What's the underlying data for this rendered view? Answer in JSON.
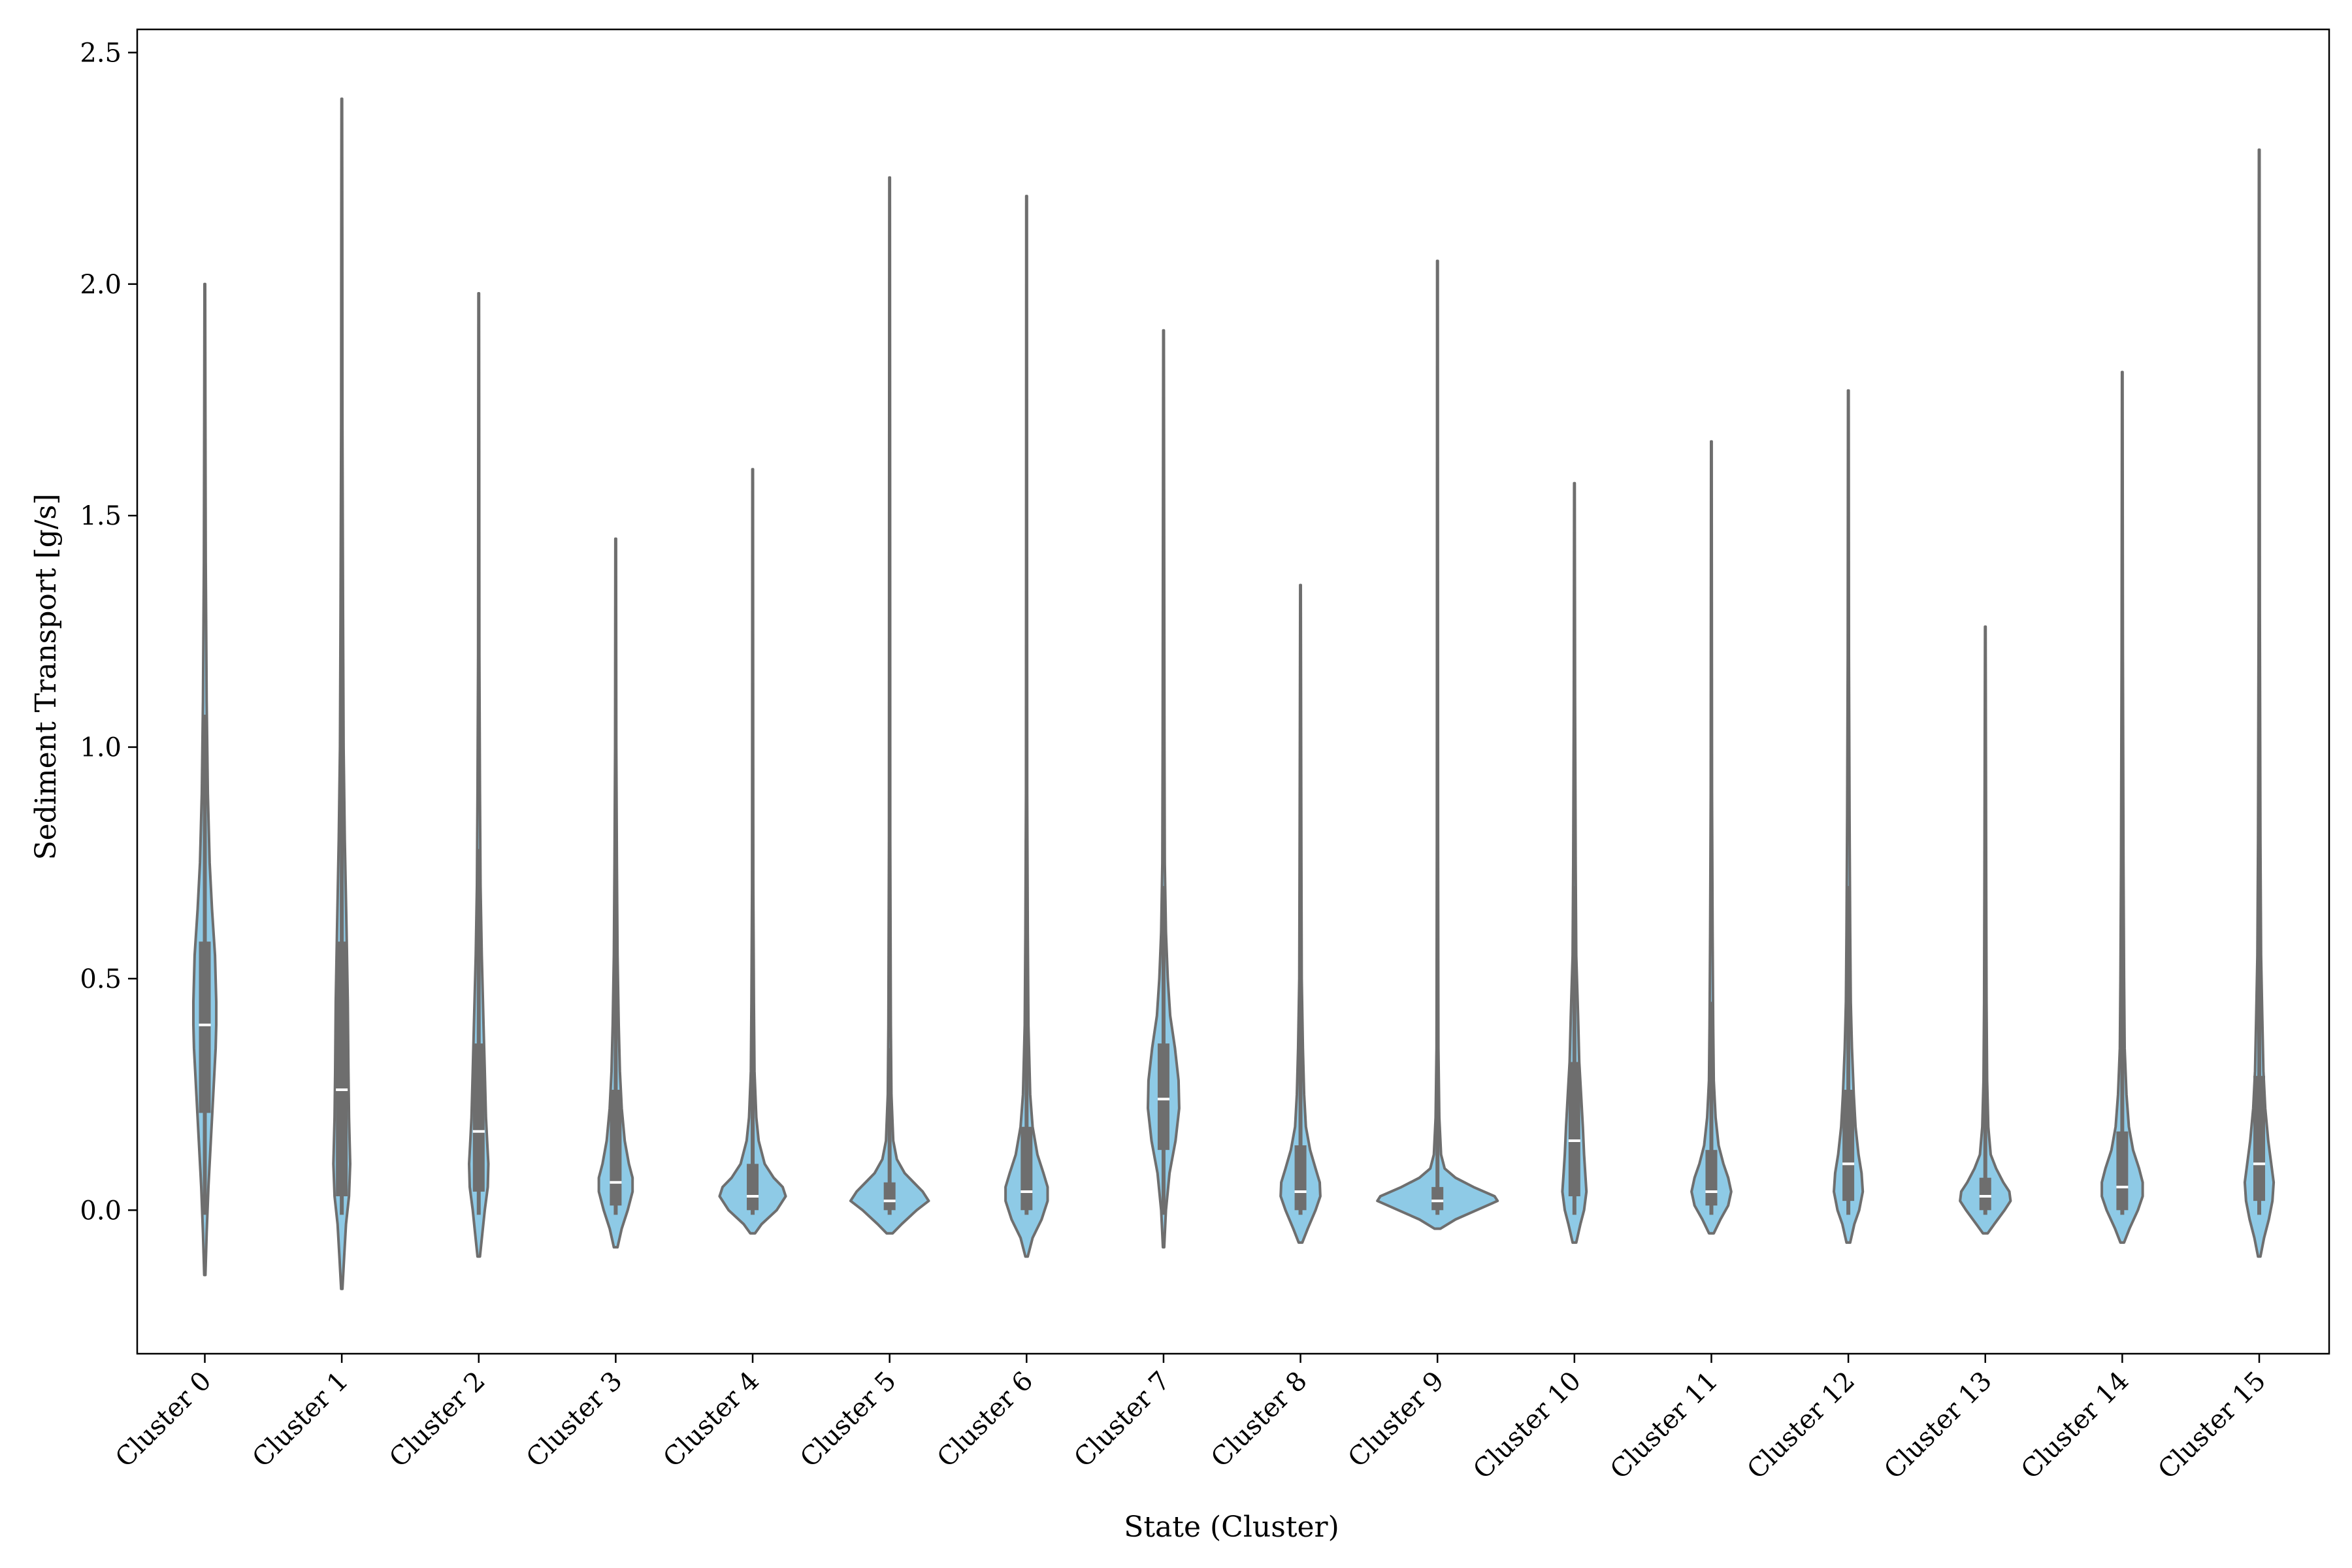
{
  "chart_data": {
    "type": "violin",
    "title": "",
    "xlabel": "State (Cluster)",
    "ylabel": "Sediment Transport [g/s]",
    "ylim": [
      -0.31,
      2.55
    ],
    "yticks": [
      0.0,
      0.5,
      1.0,
      1.5,
      2.0,
      2.5
    ],
    "ytick_labels": [
      "0.0",
      "0.5",
      "1.0",
      "1.5",
      "2.0",
      "2.5"
    ],
    "categories": [
      "Cluster 0",
      "Cluster 1",
      "Cluster 2",
      "Cluster 3",
      "Cluster 4",
      "Cluster 5",
      "Cluster 6",
      "Cluster 7",
      "Cluster 8",
      "Cluster 9",
      "Cluster 10",
      "Cluster 11",
      "Cluster 12",
      "Cluster 13",
      "Cluster 14",
      "Cluster 15"
    ],
    "grid": false,
    "legend": "none",
    "colors": {
      "fill": "#8ecae6",
      "outline": "#6e6e6e",
      "median": "#ffffff",
      "axis": "#000000"
    },
    "violins": [
      {
        "name": "Cluster 0",
        "min": -0.14,
        "max": 2.0,
        "q1": 0.21,
        "median": 0.4,
        "q3": 0.58,
        "whisker_low": -0.01,
        "whisker_high": 1.07,
        "profile": [
          [
            -0.14,
            0.001
          ],
          [
            -0.05,
            0.003
          ],
          [
            0.05,
            0.006
          ],
          [
            0.15,
            0.01
          ],
          [
            0.25,
            0.014
          ],
          [
            0.35,
            0.018
          ],
          [
            0.4,
            0.019
          ],
          [
            0.45,
            0.019
          ],
          [
            0.55,
            0.017
          ],
          [
            0.65,
            0.012
          ],
          [
            0.75,
            0.008
          ],
          [
            0.9,
            0.005
          ],
          [
            1.1,
            0.003
          ],
          [
            1.4,
            0.0015
          ],
          [
            1.7,
            0.001
          ],
          [
            2.0,
            0.0005
          ]
        ]
      },
      {
        "name": "Cluster 1",
        "min": -0.17,
        "max": 2.4,
        "q1": 0.03,
        "median": 0.26,
        "q3": 0.58,
        "whisker_low": -0.01,
        "whisker_high": 1.33,
        "profile": [
          [
            -0.17,
            0.001
          ],
          [
            -0.1,
            0.004
          ],
          [
            -0.03,
            0.007
          ],
          [
            0.03,
            0.012
          ],
          [
            0.1,
            0.014
          ],
          [
            0.2,
            0.012
          ],
          [
            0.3,
            0.011
          ],
          [
            0.45,
            0.01
          ],
          [
            0.6,
            0.008
          ],
          [
            0.8,
            0.005
          ],
          [
            1.0,
            0.003
          ],
          [
            1.3,
            0.002
          ],
          [
            1.7,
            0.001
          ],
          [
            2.1,
            0.0008
          ],
          [
            2.4,
            0.0005
          ]
        ]
      },
      {
        "name": "Cluster 2",
        "min": -0.1,
        "max": 1.98,
        "q1": 0.04,
        "median": 0.17,
        "q3": 0.36,
        "whisker_low": -0.01,
        "whisker_high": 0.78,
        "profile": [
          [
            -0.1,
            0.002
          ],
          [
            -0.05,
            0.006
          ],
          [
            0.0,
            0.01
          ],
          [
            0.05,
            0.015
          ],
          [
            0.1,
            0.016
          ],
          [
            0.15,
            0.014
          ],
          [
            0.2,
            0.012
          ],
          [
            0.3,
            0.01
          ],
          [
            0.4,
            0.008
          ],
          [
            0.55,
            0.005
          ],
          [
            0.7,
            0.003
          ],
          [
            0.9,
            0.002
          ],
          [
            1.2,
            0.001
          ],
          [
            1.6,
            0.0008
          ],
          [
            1.98,
            0.0005
          ]
        ]
      },
      {
        "name": "Cluster 3",
        "min": -0.08,
        "max": 1.45,
        "q1": 0.01,
        "median": 0.06,
        "q3": 0.26,
        "whisker_low": -0.01,
        "whisker_high": 0.8,
        "profile": [
          [
            -0.08,
            0.003
          ],
          [
            -0.04,
            0.01
          ],
          [
            0.0,
            0.02
          ],
          [
            0.04,
            0.028
          ],
          [
            0.07,
            0.028
          ],
          [
            0.1,
            0.022
          ],
          [
            0.15,
            0.015
          ],
          [
            0.22,
            0.01
          ],
          [
            0.3,
            0.007
          ],
          [
            0.4,
            0.005
          ],
          [
            0.55,
            0.003
          ],
          [
            0.75,
            0.002
          ],
          [
            1.0,
            0.001
          ],
          [
            1.45,
            0.0005
          ]
        ]
      },
      {
        "name": "Cluster 4",
        "min": -0.05,
        "max": 1.6,
        "q1": 0.0,
        "median": 0.03,
        "q3": 0.1,
        "whisker_low": -0.01,
        "whisker_high": 0.45,
        "profile": [
          [
            -0.05,
            0.004
          ],
          [
            -0.03,
            0.015
          ],
          [
            0.0,
            0.04
          ],
          [
            0.03,
            0.055
          ],
          [
            0.05,
            0.05
          ],
          [
            0.07,
            0.035
          ],
          [
            0.1,
            0.02
          ],
          [
            0.15,
            0.01
          ],
          [
            0.2,
            0.006
          ],
          [
            0.3,
            0.003
          ],
          [
            0.45,
            0.002
          ],
          [
            0.7,
            0.001
          ],
          [
            1.0,
            0.0008
          ],
          [
            1.6,
            0.0005
          ]
        ]
      },
      {
        "name": "Cluster 5",
        "min": -0.05,
        "max": 2.23,
        "q1": 0.0,
        "median": 0.02,
        "q3": 0.06,
        "whisker_low": -0.01,
        "whisker_high": 0.35,
        "profile": [
          [
            -0.05,
            0.005
          ],
          [
            -0.03,
            0.02
          ],
          [
            0.0,
            0.045
          ],
          [
            0.02,
            0.065
          ],
          [
            0.04,
            0.055
          ],
          [
            0.06,
            0.04
          ],
          [
            0.08,
            0.025
          ],
          [
            0.11,
            0.012
          ],
          [
            0.15,
            0.006
          ],
          [
            0.25,
            0.003
          ],
          [
            0.4,
            0.002
          ],
          [
            0.8,
            0.001
          ],
          [
            1.5,
            0.0008
          ],
          [
            2.23,
            0.0005
          ]
        ]
      },
      {
        "name": "Cluster 6",
        "min": -0.1,
        "max": 2.19,
        "q1": 0.0,
        "median": 0.04,
        "q3": 0.18,
        "whisker_low": -0.01,
        "whisker_high": 0.8,
        "profile": [
          [
            -0.1,
            0.002
          ],
          [
            -0.06,
            0.01
          ],
          [
            -0.02,
            0.025
          ],
          [
            0.02,
            0.035
          ],
          [
            0.05,
            0.035
          ],
          [
            0.08,
            0.028
          ],
          [
            0.12,
            0.018
          ],
          [
            0.18,
            0.01
          ],
          [
            0.25,
            0.006
          ],
          [
            0.4,
            0.003
          ],
          [
            0.6,
            0.002
          ],
          [
            0.9,
            0.001
          ],
          [
            1.4,
            0.0008
          ],
          [
            2.19,
            0.0005
          ]
        ]
      },
      {
        "name": "Cluster 7",
        "min": -0.08,
        "max": 1.9,
        "q1": 0.13,
        "median": 0.24,
        "q3": 0.36,
        "whisker_low": -0.01,
        "whisker_high": 0.7,
        "profile": [
          [
            -0.08,
            0.001
          ],
          [
            0.0,
            0.004
          ],
          [
            0.08,
            0.01
          ],
          [
            0.15,
            0.02
          ],
          [
            0.22,
            0.026
          ],
          [
            0.28,
            0.025
          ],
          [
            0.35,
            0.019
          ],
          [
            0.42,
            0.011
          ],
          [
            0.5,
            0.007
          ],
          [
            0.6,
            0.004
          ],
          [
            0.75,
            0.002
          ],
          [
            1.0,
            0.0015
          ],
          [
            1.4,
            0.001
          ],
          [
            1.9,
            0.0005
          ]
        ]
      },
      {
        "name": "Cluster 8",
        "min": -0.07,
        "max": 1.35,
        "q1": 0.0,
        "median": 0.04,
        "q3": 0.14,
        "whisker_low": -0.01,
        "whisker_high": 0.5,
        "profile": [
          [
            -0.07,
            0.003
          ],
          [
            -0.04,
            0.012
          ],
          [
            0.0,
            0.025
          ],
          [
            0.03,
            0.033
          ],
          [
            0.06,
            0.032
          ],
          [
            0.09,
            0.025
          ],
          [
            0.13,
            0.016
          ],
          [
            0.18,
            0.009
          ],
          [
            0.25,
            0.006
          ],
          [
            0.35,
            0.004
          ],
          [
            0.5,
            0.002
          ],
          [
            0.75,
            0.0015
          ],
          [
            1.0,
            0.001
          ],
          [
            1.35,
            0.0005
          ]
        ]
      },
      {
        "name": "Cluster 9",
        "min": -0.04,
        "max": 2.05,
        "q1": 0.0,
        "median": 0.02,
        "q3": 0.05,
        "whisker_low": -0.01,
        "whisker_high": 0.35,
        "profile": [
          [
            -0.04,
            0.005
          ],
          [
            -0.02,
            0.03
          ],
          [
            0.0,
            0.065
          ],
          [
            0.02,
            0.1
          ],
          [
            0.03,
            0.095
          ],
          [
            0.05,
            0.06
          ],
          [
            0.07,
            0.03
          ],
          [
            0.09,
            0.012
          ],
          [
            0.12,
            0.006
          ],
          [
            0.2,
            0.003
          ],
          [
            0.35,
            0.0015
          ],
          [
            0.8,
            0.001
          ],
          [
            1.4,
            0.0008
          ],
          [
            2.05,
            0.0005
          ]
        ]
      },
      {
        "name": "Cluster 10",
        "min": -0.07,
        "max": 1.57,
        "q1": 0.03,
        "median": 0.15,
        "q3": 0.32,
        "whisker_low": -0.01,
        "whisker_high": 0.7,
        "profile": [
          [
            -0.07,
            0.003
          ],
          [
            -0.03,
            0.01
          ],
          [
            0.0,
            0.016
          ],
          [
            0.04,
            0.02
          ],
          [
            0.08,
            0.018
          ],
          [
            0.12,
            0.016
          ],
          [
            0.18,
            0.014
          ],
          [
            0.25,
            0.011
          ],
          [
            0.32,
            0.008
          ],
          [
            0.42,
            0.006
          ],
          [
            0.55,
            0.003
          ],
          [
            0.75,
            0.002
          ],
          [
            1.1,
            0.001
          ],
          [
            1.57,
            0.0005
          ]
        ]
      },
      {
        "name": "Cluster 11",
        "min": -0.05,
        "max": 1.66,
        "q1": 0.01,
        "median": 0.04,
        "q3": 0.13,
        "whisker_low": -0.01,
        "whisker_high": 0.45,
        "profile": [
          [
            -0.05,
            0.004
          ],
          [
            -0.02,
            0.015
          ],
          [
            0.01,
            0.028
          ],
          [
            0.04,
            0.033
          ],
          [
            0.07,
            0.028
          ],
          [
            0.1,
            0.02
          ],
          [
            0.14,
            0.012
          ],
          [
            0.2,
            0.007
          ],
          [
            0.28,
            0.004
          ],
          [
            0.4,
            0.003
          ],
          [
            0.6,
            0.002
          ],
          [
            0.9,
            0.001
          ],
          [
            1.2,
            0.0008
          ],
          [
            1.66,
            0.0005
          ]
        ]
      },
      {
        "name": "Cluster 12",
        "min": -0.07,
        "max": 1.77,
        "q1": 0.02,
        "median": 0.1,
        "q3": 0.26,
        "whisker_low": -0.01,
        "whisker_high": 0.7,
        "profile": [
          [
            -0.07,
            0.003
          ],
          [
            -0.03,
            0.01
          ],
          [
            0.0,
            0.018
          ],
          [
            0.04,
            0.024
          ],
          [
            0.08,
            0.022
          ],
          [
            0.12,
            0.017
          ],
          [
            0.18,
            0.012
          ],
          [
            0.25,
            0.009
          ],
          [
            0.35,
            0.006
          ],
          [
            0.45,
            0.004
          ],
          [
            0.6,
            0.003
          ],
          [
            0.85,
            0.002
          ],
          [
            1.2,
            0.001
          ],
          [
            1.77,
            0.0005
          ]
        ]
      },
      {
        "name": "Cluster 13",
        "min": -0.05,
        "max": 1.26,
        "q1": 0.0,
        "median": 0.03,
        "q3": 0.07,
        "whisker_low": -0.01,
        "whisker_high": 0.7,
        "profile": [
          [
            -0.05,
            0.004
          ],
          [
            -0.03,
            0.015
          ],
          [
            0.0,
            0.032
          ],
          [
            0.02,
            0.042
          ],
          [
            0.04,
            0.04
          ],
          [
            0.06,
            0.03
          ],
          [
            0.09,
            0.018
          ],
          [
            0.12,
            0.009
          ],
          [
            0.18,
            0.005
          ],
          [
            0.28,
            0.003
          ],
          [
            0.45,
            0.002
          ],
          [
            0.7,
            0.0015
          ],
          [
            0.95,
            0.001
          ],
          [
            1.26,
            0.0005
          ]
        ]
      },
      {
        "name": "Cluster 14",
        "min": -0.07,
        "max": 1.81,
        "q1": 0.0,
        "median": 0.05,
        "q3": 0.17,
        "whisker_low": -0.01,
        "whisker_high": 0.8,
        "profile": [
          [
            -0.07,
            0.003
          ],
          [
            -0.04,
            0.012
          ],
          [
            0.0,
            0.026
          ],
          [
            0.03,
            0.034
          ],
          [
            0.06,
            0.034
          ],
          [
            0.09,
            0.028
          ],
          [
            0.13,
            0.018
          ],
          [
            0.18,
            0.011
          ],
          [
            0.25,
            0.007
          ],
          [
            0.35,
            0.004
          ],
          [
            0.5,
            0.003
          ],
          [
            0.75,
            0.002
          ],
          [
            1.2,
            0.001
          ],
          [
            1.81,
            0.0005
          ]
        ]
      },
      {
        "name": "Cluster 15",
        "min": -0.1,
        "max": 2.29,
        "q1": 0.02,
        "median": 0.1,
        "q3": 0.29,
        "whisker_low": -0.01,
        "whisker_high": 0.8,
        "profile": [
          [
            -0.1,
            0.002
          ],
          [
            -0.06,
            0.008
          ],
          [
            -0.02,
            0.016
          ],
          [
            0.02,
            0.022
          ],
          [
            0.06,
            0.024
          ],
          [
            0.1,
            0.02
          ],
          [
            0.15,
            0.015
          ],
          [
            0.22,
            0.01
          ],
          [
            0.3,
            0.007
          ],
          [
            0.42,
            0.005
          ],
          [
            0.55,
            0.003
          ],
          [
            0.8,
            0.002
          ],
          [
            1.3,
            0.001
          ],
          [
            2.29,
            0.0005
          ]
        ]
      }
    ]
  }
}
